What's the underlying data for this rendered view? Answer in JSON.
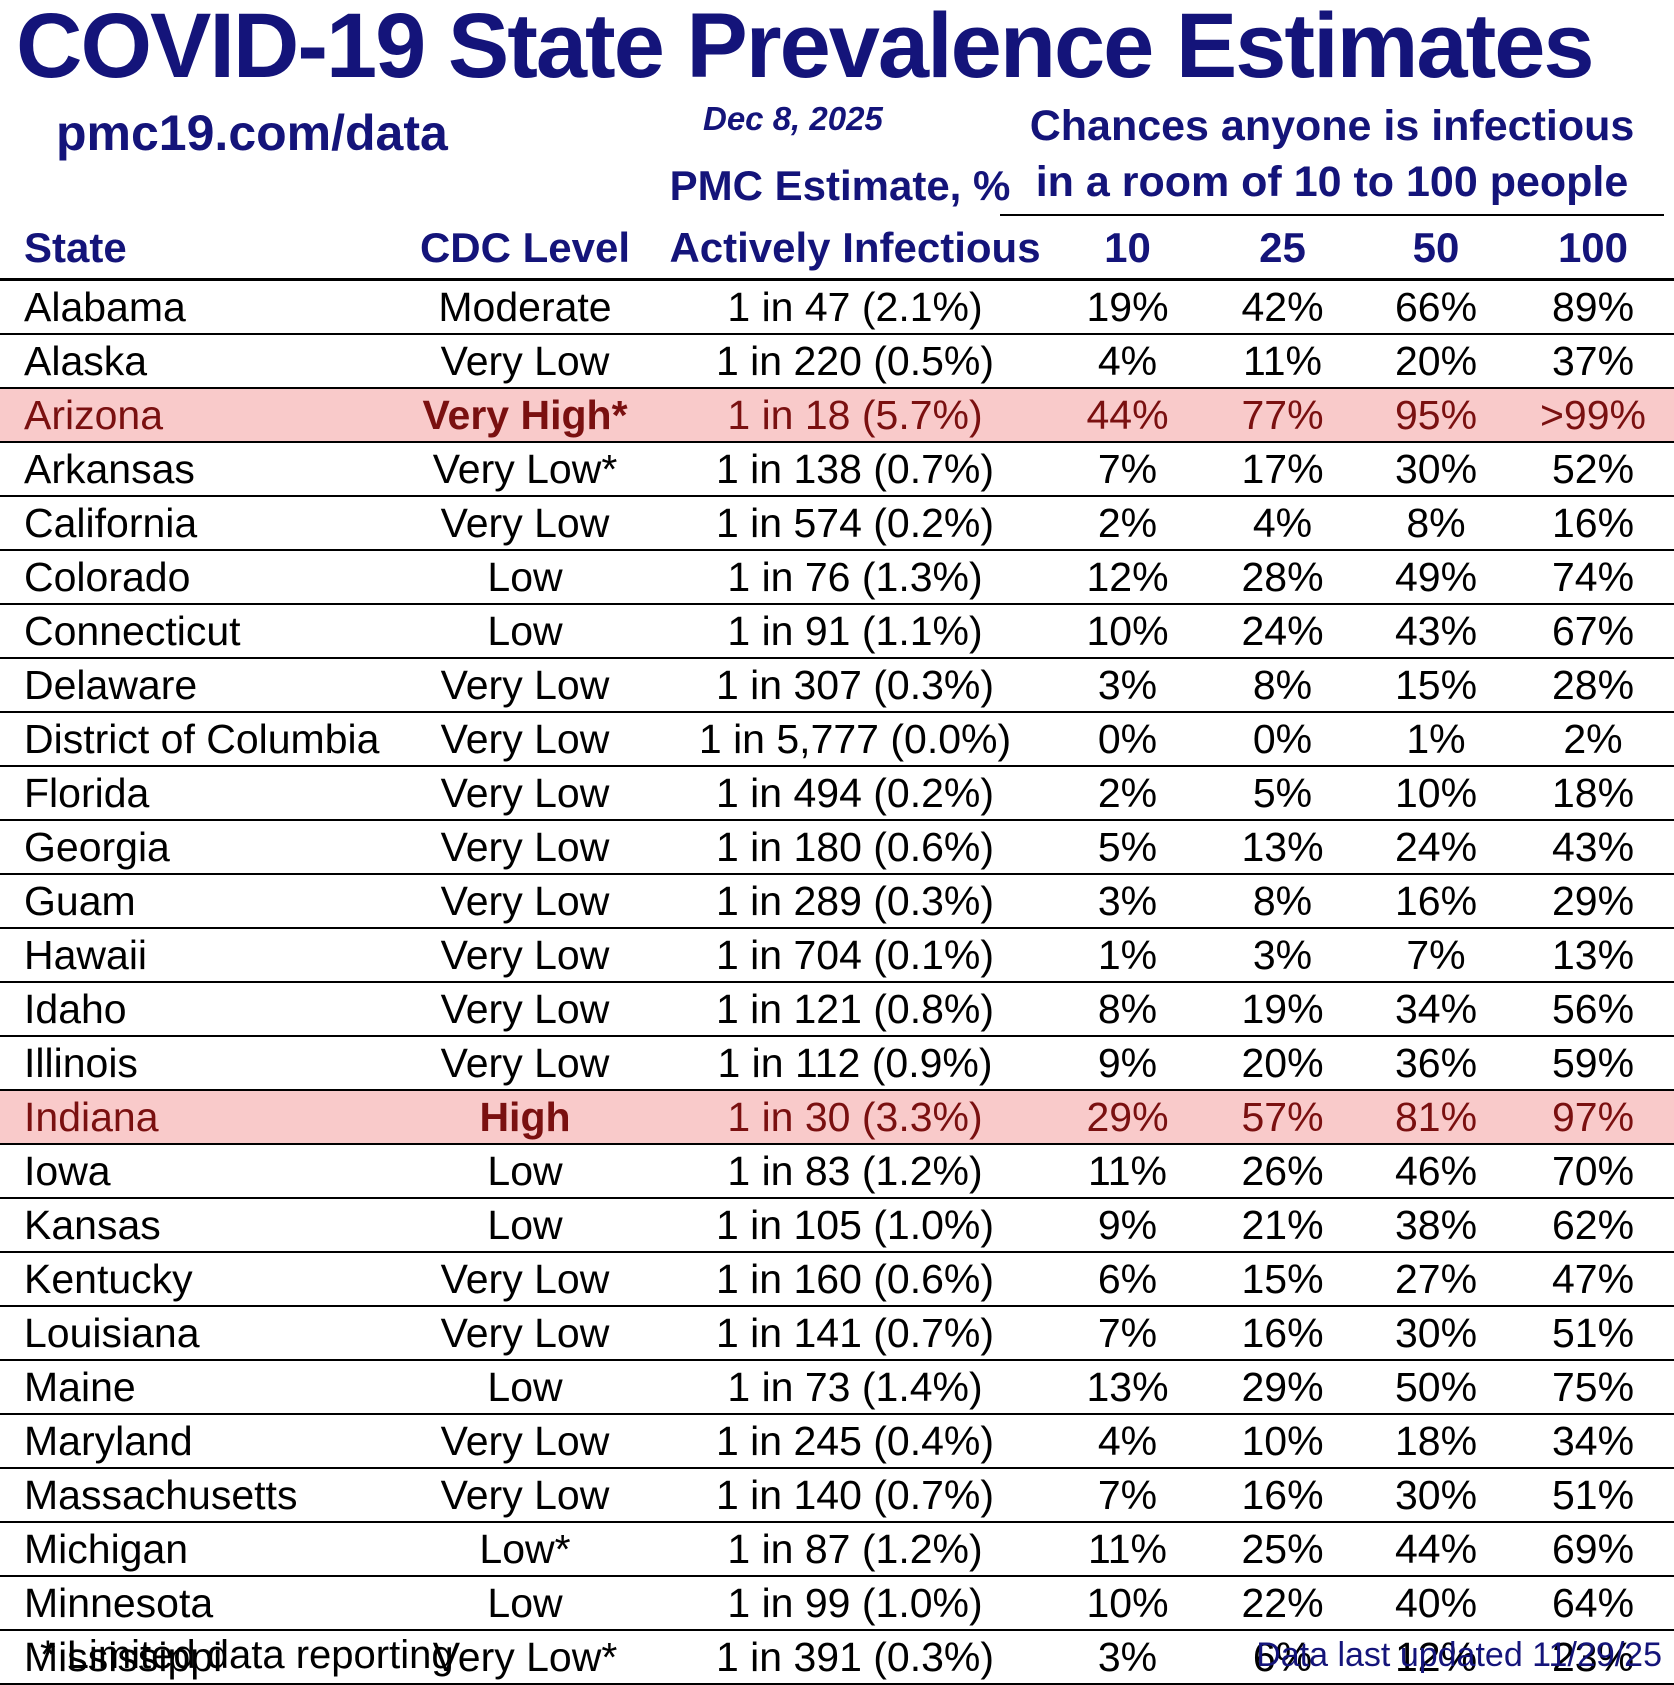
{
  "colors": {
    "navy": "#14147a",
    "highlight_background": "#f9caca",
    "highlight_text": "#7a1010",
    "body_text": "#000000",
    "background": "#ffffff"
  },
  "chart_data": {
    "type": "table",
    "title": "COVID-19 State Prevalence Estimates",
    "site": "pmc19.com/data",
    "date": "Dec 8, 2025",
    "pmc_label": "PMC Estimate, %",
    "room_line1": "Chances anyone is infectious",
    "room_line2": "in a room of 10 to 100 people",
    "columns": [
      "State",
      "CDC Level",
      "Actively Infectious",
      "10",
      "25",
      "50",
      "100"
    ],
    "rows": [
      {
        "state": "Alabama",
        "cdc_level": "Moderate",
        "estimate": "1 in 47 (2.1%)",
        "chance_10": "19%",
        "chance_25": "42%",
        "chance_50": "66%",
        "chance_100": "89%",
        "highlight": false
      },
      {
        "state": "Alaska",
        "cdc_level": "Very Low",
        "estimate": "1 in 220 (0.5%)",
        "chance_10": "4%",
        "chance_25": "11%",
        "chance_50": "20%",
        "chance_100": "37%",
        "highlight": false
      },
      {
        "state": "Arizona",
        "cdc_level": "Very High*",
        "estimate": "1 in 18 (5.7%)",
        "chance_10": "44%",
        "chance_25": "77%",
        "chance_50": "95%",
        "chance_100": ">99%",
        "highlight": true
      },
      {
        "state": "Arkansas",
        "cdc_level": "Very Low*",
        "estimate": "1 in 138 (0.7%)",
        "chance_10": "7%",
        "chance_25": "17%",
        "chance_50": "30%",
        "chance_100": "52%",
        "highlight": false
      },
      {
        "state": "California",
        "cdc_level": "Very Low",
        "estimate": "1 in 574 (0.2%)",
        "chance_10": "2%",
        "chance_25": "4%",
        "chance_50": "8%",
        "chance_100": "16%",
        "highlight": false
      },
      {
        "state": "Colorado",
        "cdc_level": "Low",
        "estimate": "1 in 76 (1.3%)",
        "chance_10": "12%",
        "chance_25": "28%",
        "chance_50": "49%",
        "chance_100": "74%",
        "highlight": false
      },
      {
        "state": "Connecticut",
        "cdc_level": "Low",
        "estimate": "1 in 91 (1.1%)",
        "chance_10": "10%",
        "chance_25": "24%",
        "chance_50": "43%",
        "chance_100": "67%",
        "highlight": false
      },
      {
        "state": "Delaware",
        "cdc_level": "Very Low",
        "estimate": "1 in 307 (0.3%)",
        "chance_10": "3%",
        "chance_25": "8%",
        "chance_50": "15%",
        "chance_100": "28%",
        "highlight": false
      },
      {
        "state": "District of Columbia",
        "cdc_level": "Very Low",
        "estimate": "1 in 5,777 (0.0%)",
        "chance_10": "0%",
        "chance_25": "0%",
        "chance_50": "1%",
        "chance_100": "2%",
        "highlight": false
      },
      {
        "state": "Florida",
        "cdc_level": "Very Low",
        "estimate": "1 in 494 (0.2%)",
        "chance_10": "2%",
        "chance_25": "5%",
        "chance_50": "10%",
        "chance_100": "18%",
        "highlight": false
      },
      {
        "state": "Georgia",
        "cdc_level": "Very Low",
        "estimate": "1 in 180 (0.6%)",
        "chance_10": "5%",
        "chance_25": "13%",
        "chance_50": "24%",
        "chance_100": "43%",
        "highlight": false
      },
      {
        "state": "Guam",
        "cdc_level": "Very Low",
        "estimate": "1 in 289 (0.3%)",
        "chance_10": "3%",
        "chance_25": "8%",
        "chance_50": "16%",
        "chance_100": "29%",
        "highlight": false
      },
      {
        "state": "Hawaii",
        "cdc_level": "Very Low",
        "estimate": "1 in 704 (0.1%)",
        "chance_10": "1%",
        "chance_25": "3%",
        "chance_50": "7%",
        "chance_100": "13%",
        "highlight": false
      },
      {
        "state": "Idaho",
        "cdc_level": "Very Low",
        "estimate": "1 in 121 (0.8%)",
        "chance_10": "8%",
        "chance_25": "19%",
        "chance_50": "34%",
        "chance_100": "56%",
        "highlight": false
      },
      {
        "state": "Illinois",
        "cdc_level": "Very Low",
        "estimate": "1 in 112 (0.9%)",
        "chance_10": "9%",
        "chance_25": "20%",
        "chance_50": "36%",
        "chance_100": "59%",
        "highlight": false
      },
      {
        "state": "Indiana",
        "cdc_level": "High",
        "estimate": "1 in 30 (3.3%)",
        "chance_10": "29%",
        "chance_25": "57%",
        "chance_50": "81%",
        "chance_100": "97%",
        "highlight": true
      },
      {
        "state": "Iowa",
        "cdc_level": "Low",
        "estimate": "1 in 83 (1.2%)",
        "chance_10": "11%",
        "chance_25": "26%",
        "chance_50": "46%",
        "chance_100": "70%",
        "highlight": false
      },
      {
        "state": "Kansas",
        "cdc_level": "Low",
        "estimate": "1 in 105 (1.0%)",
        "chance_10": "9%",
        "chance_25": "21%",
        "chance_50": "38%",
        "chance_100": "62%",
        "highlight": false
      },
      {
        "state": "Kentucky",
        "cdc_level": "Very Low",
        "estimate": "1 in 160 (0.6%)",
        "chance_10": "6%",
        "chance_25": "15%",
        "chance_50": "27%",
        "chance_100": "47%",
        "highlight": false
      },
      {
        "state": "Louisiana",
        "cdc_level": "Very Low",
        "estimate": "1 in 141 (0.7%)",
        "chance_10": "7%",
        "chance_25": "16%",
        "chance_50": "30%",
        "chance_100": "51%",
        "highlight": false
      },
      {
        "state": "Maine",
        "cdc_level": "Low",
        "estimate": "1 in 73 (1.4%)",
        "chance_10": "13%",
        "chance_25": "29%",
        "chance_50": "50%",
        "chance_100": "75%",
        "highlight": false
      },
      {
        "state": "Maryland",
        "cdc_level": "Very Low",
        "estimate": "1 in 245 (0.4%)",
        "chance_10": "4%",
        "chance_25": "10%",
        "chance_50": "18%",
        "chance_100": "34%",
        "highlight": false
      },
      {
        "state": "Massachusetts",
        "cdc_level": "Very Low",
        "estimate": "1 in 140 (0.7%)",
        "chance_10": "7%",
        "chance_25": "16%",
        "chance_50": "30%",
        "chance_100": "51%",
        "highlight": false
      },
      {
        "state": "Michigan",
        "cdc_level": "Low*",
        "estimate": "1 in 87 (1.2%)",
        "chance_10": "11%",
        "chance_25": "25%",
        "chance_50": "44%",
        "chance_100": "69%",
        "highlight": false
      },
      {
        "state": "Minnesota",
        "cdc_level": "Low",
        "estimate": "1 in 99 (1.0%)",
        "chance_10": "10%",
        "chance_25": "22%",
        "chance_50": "40%",
        "chance_100": "64%",
        "highlight": false
      },
      {
        "state": "Mississippi",
        "cdc_level": "Very Low*",
        "estimate": "1 in 391 (0.3%)",
        "chance_10": "3%",
        "chance_25": "6%",
        "chance_50": "12%",
        "chance_100": "23%",
        "highlight": false
      }
    ],
    "footnote": "* Limited data reporting",
    "updated": "Data last updated 11/29/25"
  }
}
